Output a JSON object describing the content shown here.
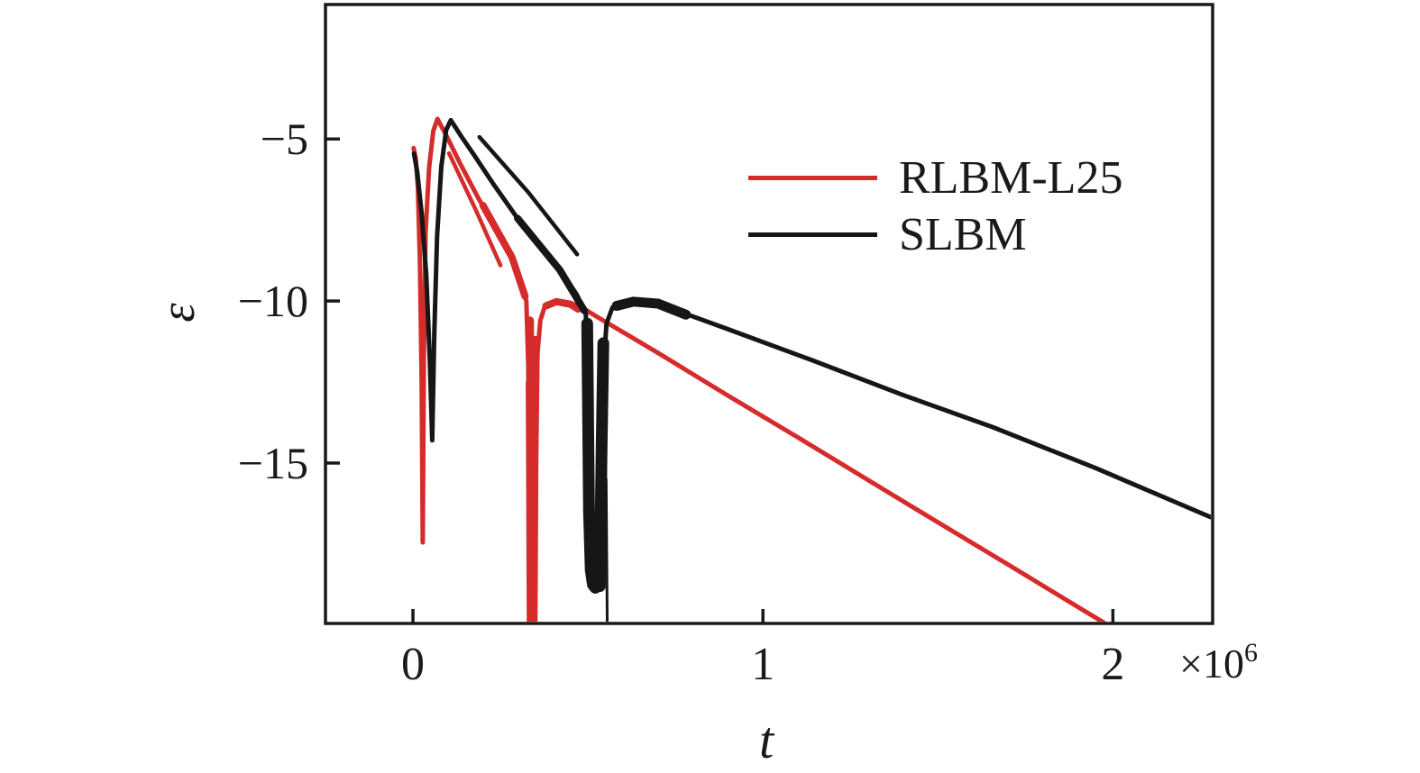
{
  "chart_data": {
    "type": "line",
    "title": "",
    "xlabel": "t",
    "ylabel": "ε",
    "x_offset": {
      "base": "×10",
      "exp": "6",
      "full": "×10⁶"
    },
    "xlim": [
      -250000,
      2285000
    ],
    "ylim": [
      -19.95,
      -0.85
    ],
    "grid": false,
    "axis_color": "#1a1a1a",
    "xticks": [
      {
        "value": 0,
        "label": "0"
      },
      {
        "value": 1000000,
        "label": "1"
      },
      {
        "value": 2000000,
        "label": "2"
      }
    ],
    "yticks": [
      {
        "value": -5,
        "label": "−5"
      },
      {
        "value": -10,
        "label": "−10"
      },
      {
        "value": -15,
        "label": "−15"
      }
    ],
    "legend": {
      "position": "upper-right-inside",
      "entries": [
        {
          "label": "RLBM-L25",
          "color": "#d62b2b"
        },
        {
          "label": "SLBM",
          "color": "#161616"
        }
      ]
    },
    "series": [
      {
        "name": "RLBM-L25",
        "color": "#d62b2b",
        "style": "solid",
        "paths": [
          {
            "width": 5,
            "points": [
              [
                2000,
                -5.28
              ],
              [
                8000,
                -5.6
              ],
              [
                14000,
                -6.5
              ],
              [
                20000,
                -8.8
              ],
              [
                25000,
                -12.5
              ],
              [
                28000,
                -17.45
              ],
              [
                31000,
                -11.8
              ],
              [
                36000,
                -7.9
              ],
              [
                46000,
                -5.9
              ],
              [
                58000,
                -4.75
              ],
              [
                70000,
                -4.38
              ],
              [
                98000,
                -4.95
              ],
              [
                136000,
                -5.78
              ],
              [
                188000,
                -6.85
              ],
              [
                239000,
                -7.8
              ],
              [
                283000,
                -8.65
              ],
              [
                309000,
                -9.4
              ],
              [
                324000,
                -10.0
              ],
              [
                331000,
                -12.5
              ],
              [
                336000,
                -16.5
              ],
              [
                339000,
                -19.9
              ],
              [
                344000,
                -19.9
              ],
              [
                350000,
                -14.5
              ],
              [
                356000,
                -11.6
              ],
              [
                364000,
                -10.6
              ],
              [
                378000,
                -10.12
              ],
              [
                405000,
                -10.02
              ],
              [
                435000,
                -10.07
              ],
              [
                470000,
                -10.12
              ],
              [
                520000,
                -10.45
              ],
              [
                700000,
                -11.6
              ],
              [
                900000,
                -12.92
              ],
              [
                1100000,
                -14.21
              ],
              [
                1300000,
                -15.52
              ],
              [
                1500000,
                -16.83
              ],
              [
                1700000,
                -18.13
              ],
              [
                1900000,
                -19.44
              ],
              [
                1975000,
                -19.93
              ]
            ]
          },
          {
            "width": 9,
            "points": [
              [
                334000,
                -10.6
              ],
              [
                337000,
                -16.0
              ],
              [
                339500,
                -19.85
              ],
              [
                344500,
                -19.85
              ],
              [
                347000,
                -15.0
              ],
              [
                351000,
                -11.2
              ]
            ]
          },
          {
            "width": 3,
            "points": [
              [
                326000,
                -12.5
              ],
              [
                329000,
                -19.9
              ]
            ]
          },
          {
            "width": 4.5,
            "points": [
              [
                103000,
                -5.44
              ],
              [
                180000,
                -7.2
              ],
              [
                250000,
                -8.9
              ]
            ]
          },
          {
            "width": 8,
            "points": [
              [
                200000,
                -7.05
              ],
              [
                283000,
                -8.65
              ],
              [
                320000,
                -9.85
              ]
            ]
          },
          {
            "width": 8,
            "points": [
              [
                380000,
                -10.15
              ],
              [
                410000,
                -10.02
              ],
              [
                450000,
                -10.1
              ],
              [
                472000,
                -10.25
              ]
            ]
          }
        ]
      },
      {
        "name": "SLBM",
        "color": "#161616",
        "style": "solid",
        "paths": [
          {
            "width": 5,
            "points": [
              [
                3000,
                -5.45
              ],
              [
                12000,
                -6.0
              ],
              [
                25000,
                -7.3
              ],
              [
                38000,
                -9.2
              ],
              [
                48000,
                -11.8
              ],
              [
                55000,
                -14.3
              ],
              [
                61000,
                -11.0
              ],
              [
                69000,
                -8.0
              ],
              [
                81000,
                -5.85
              ],
              [
                95000,
                -4.72
              ],
              [
                108000,
                -4.42
              ],
              [
                140000,
                -4.95
              ],
              [
                175000,
                -5.5
              ],
              [
                227000,
                -6.35
              ],
              [
                299000,
                -7.45
              ],
              [
                368000,
                -8.35
              ],
              [
                420000,
                -9.05
              ],
              [
                468000,
                -9.8
              ],
              [
                494000,
                -10.4
              ],
              [
                501000,
                -14.0
              ],
              [
                507000,
                -17.8
              ],
              [
                513000,
                -18.7
              ],
              [
                520000,
                -18.9
              ],
              [
                527000,
                -18.4
              ],
              [
                534000,
                -18.85
              ],
              [
                540000,
                -15.0
              ],
              [
                546000,
                -11.8
              ],
              [
                553000,
                -10.7
              ],
              [
                570000,
                -10.2
              ],
              [
                610000,
                -10.03
              ],
              [
                655000,
                -10.02
              ],
              [
                703000,
                -10.08
              ],
              [
                760000,
                -10.32
              ],
              [
                900000,
                -10.87
              ],
              [
                1141000,
                -11.83
              ],
              [
                1400000,
                -12.9
              ],
              [
                1656000,
                -13.89
              ],
              [
                1950000,
                -15.15
              ],
              [
                2279000,
                -16.67
              ]
            ]
          },
          {
            "width": 13,
            "points": [
              [
                498000,
                -10.7
              ],
              [
                503000,
                -16.5
              ],
              [
                508000,
                -18.3
              ],
              [
                514000,
                -18.75
              ],
              [
                521000,
                -18.85
              ],
              [
                528000,
                -18.4
              ],
              [
                534000,
                -18.8
              ],
              [
                539000,
                -14.5
              ],
              [
                544000,
                -11.3
              ]
            ]
          },
          {
            "width": 3,
            "points": [
              [
                552000,
                -15.5
              ],
              [
                555000,
                -19.95
              ]
            ]
          },
          {
            "width": 4.5,
            "points": [
              [
                190000,
                -4.94
              ],
              [
                330000,
                -6.65
              ],
              [
                469000,
                -8.56
              ]
            ]
          },
          {
            "width": 8,
            "points": [
              [
                299000,
                -7.45
              ],
              [
                420000,
                -9.05
              ],
              [
                490000,
                -10.3
              ]
            ]
          },
          {
            "width": 11,
            "points": [
              [
                582000,
                -10.15
              ],
              [
                630000,
                -10.02
              ],
              [
                700000,
                -10.08
              ],
              [
                780000,
                -10.42
              ]
            ]
          }
        ]
      }
    ]
  }
}
